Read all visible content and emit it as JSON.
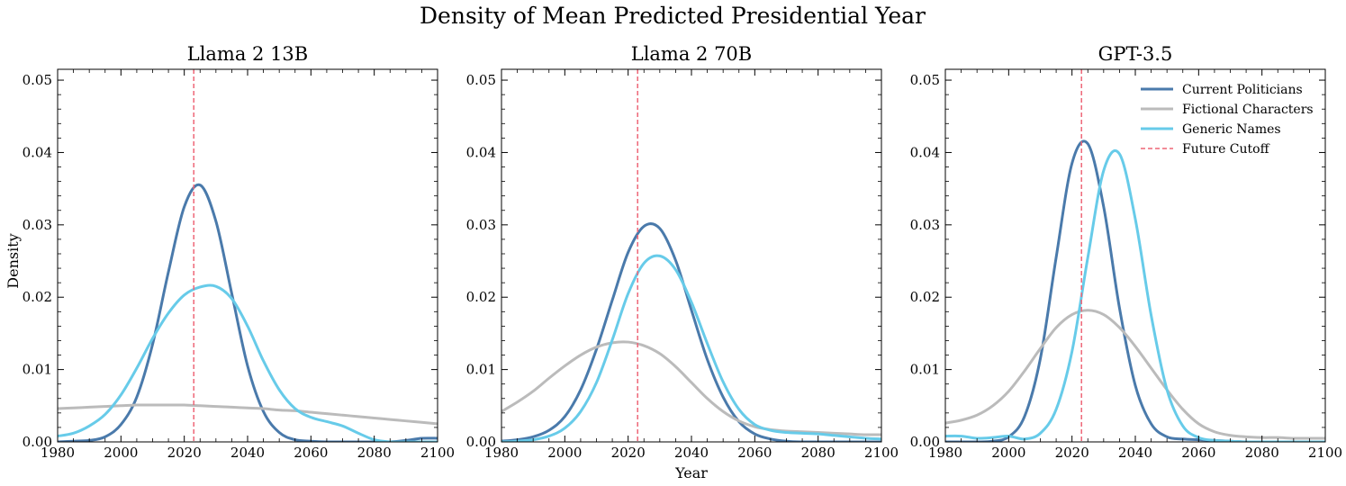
{
  "figure": {
    "suptitle": "Density of Mean Predicted Presidential Year",
    "ylabel": "Density",
    "xlabel": "Year"
  },
  "colors": {
    "current_politicians": "#4a7aab",
    "fictional_characters": "#bbbbbb",
    "generic_names": "#67cbe9",
    "future_cutoff": "#ee6677"
  },
  "legend": {
    "placement": "top-right of GPT-3.5 panel",
    "entries": [
      "Current Politicians",
      "Fictional Characters",
      "Generic Names",
      "Future Cutoff"
    ]
  },
  "chart_data": [
    {
      "type": "line",
      "title": "Llama 2 13B",
      "xlim": [
        1980,
        2100
      ],
      "ylim": [
        0,
        0.0515
      ],
      "xticks": [
        "1980",
        "2000",
        "2020",
        "2040",
        "2060",
        "2080",
        "2100"
      ],
      "yticks": [
        "0.00",
        "0.01",
        "0.02",
        "0.03",
        "0.04",
        "0.05"
      ],
      "cutoff": 2023,
      "x": [
        1980,
        1985,
        1990,
        1995,
        2000,
        2005,
        2010,
        2015,
        2020,
        2025,
        2030,
        2035,
        2040,
        2045,
        2050,
        2055,
        2060,
        2065,
        2070,
        2075,
        2080,
        2085,
        2090,
        2095,
        2100
      ],
      "series": [
        {
          "name": "Current Politicians",
          "values": [
            0.0,
            0.0001,
            0.0002,
            0.0007,
            0.0024,
            0.0062,
            0.0135,
            0.0235,
            0.0325,
            0.0355,
            0.0305,
            0.0205,
            0.0105,
            0.0042,
            0.0013,
            0.0003,
            0.0001,
            0.0,
            0.0,
            0.0,
            0.0,
            0.0,
            0.0002,
            0.0005,
            0.0005
          ]
        },
        {
          "name": "Fictional Characters",
          "values": [
            0.0046,
            0.0047,
            0.0048,
            0.0049,
            0.005,
            0.0051,
            0.0051,
            0.0051,
            0.0051,
            0.005,
            0.0049,
            0.0048,
            0.0047,
            0.0046,
            0.0044,
            0.0043,
            0.0041,
            0.0039,
            0.0037,
            0.0035,
            0.0033,
            0.0031,
            0.0029,
            0.0027,
            0.0025
          ]
        },
        {
          "name": "Generic Names",
          "values": [
            0.0008,
            0.0012,
            0.0022,
            0.0038,
            0.0065,
            0.0102,
            0.0143,
            0.0178,
            0.0203,
            0.0214,
            0.0215,
            0.0198,
            0.016,
            0.0112,
            0.0072,
            0.0046,
            0.0034,
            0.0028,
            0.0022,
            0.0012,
            0.0003,
            0.0,
            0.0,
            0.0,
            0.0
          ]
        }
      ]
    },
    {
      "type": "line",
      "title": "Llama 2 70B",
      "xlim": [
        1980,
        2100
      ],
      "ylim": [
        0,
        0.0515
      ],
      "xticks": [
        "1980",
        "2000",
        "2020",
        "2040",
        "2060",
        "2080",
        "2100"
      ],
      "yticks": [
        "0.00",
        "0.01",
        "0.02",
        "0.03",
        "0.04",
        "0.05"
      ],
      "cutoff": 2023,
      "x": [
        1980,
        1985,
        1990,
        1995,
        2000,
        2005,
        2010,
        2015,
        2020,
        2025,
        2030,
        2035,
        2040,
        2045,
        2050,
        2055,
        2060,
        2065,
        2070,
        2075,
        2080,
        2085,
        2090,
        2095,
        2100
      ],
      "series": [
        {
          "name": "Current Politicians",
          "values": [
            0.0001,
            0.0003,
            0.0007,
            0.0016,
            0.0035,
            0.0072,
            0.0128,
            0.0196,
            0.0262,
            0.0298,
            0.0295,
            0.0251,
            0.0182,
            0.0114,
            0.0062,
            0.0028,
            0.0011,
            0.0004,
            0.0001,
            0.0,
            0.0,
            0.0,
            0.0,
            0.0,
            0.0
          ]
        },
        {
          "name": "Fictional Characters",
          "values": [
            0.0042,
            0.0055,
            0.007,
            0.0088,
            0.0105,
            0.012,
            0.0131,
            0.0137,
            0.0138,
            0.0133,
            0.0122,
            0.0104,
            0.0082,
            0.006,
            0.0042,
            0.0029,
            0.0021,
            0.0017,
            0.0015,
            0.0014,
            0.0013,
            0.0012,
            0.0011,
            0.001,
            0.001
          ]
        },
        {
          "name": "Generic Names",
          "values": [
            0.0,
            0.0001,
            0.0003,
            0.0008,
            0.0019,
            0.0042,
            0.0082,
            0.0141,
            0.0205,
            0.0247,
            0.0257,
            0.0238,
            0.0193,
            0.0136,
            0.0083,
            0.0045,
            0.0024,
            0.0016,
            0.0013,
            0.0012,
            0.0011,
            0.0009,
            0.0007,
            0.0005,
            0.0004
          ]
        }
      ]
    },
    {
      "type": "line",
      "title": "GPT-3.5",
      "xlim": [
        1980,
        2100
      ],
      "ylim": [
        0,
        0.0515
      ],
      "xticks": [
        "1980",
        "2000",
        "2020",
        "2040",
        "2060",
        "2080",
        "2100"
      ],
      "yticks": [
        "0.00",
        "0.01",
        "0.02",
        "0.03",
        "0.04",
        "0.05"
      ],
      "cutoff": 2023,
      "x": [
        1980,
        1985,
        1990,
        1995,
        2000,
        2005,
        2010,
        2015,
        2020,
        2025,
        2030,
        2035,
        2040,
        2045,
        2050,
        2055,
        2060,
        2065,
        2070,
        2075,
        2080,
        2085,
        2090,
        2095,
        2100
      ],
      "series": [
        {
          "name": "Current Politicians",
          "values": [
            0.0,
            0.0,
            0.0,
            0.0001,
            0.0007,
            0.0035,
            0.0115,
            0.0255,
            0.0385,
            0.0412,
            0.0325,
            0.0185,
            0.0078,
            0.0025,
            0.0007,
            0.0004,
            0.0003,
            0.0002,
            0.0001,
            0.0,
            0.0,
            0.0,
            0.0,
            0.0,
            0.0
          ]
        },
        {
          "name": "Fictional Characters",
          "values": [
            0.0026,
            0.003,
            0.0037,
            0.005,
            0.007,
            0.0098,
            0.0129,
            0.0158,
            0.0176,
            0.0182,
            0.0176,
            0.0158,
            0.0132,
            0.0102,
            0.0072,
            0.0045,
            0.0025,
            0.0014,
            0.0009,
            0.0007,
            0.0006,
            0.0006,
            0.0005,
            0.0005,
            0.0005
          ]
        },
        {
          "name": "Generic Names",
          "values": [
            0.0008,
            0.0008,
            0.0005,
            0.0006,
            0.0008,
            0.0004,
            0.0012,
            0.0045,
            0.0125,
            0.0255,
            0.0375,
            0.0398,
            0.0308,
            0.0175,
            0.0072,
            0.0022,
            0.0006,
            0.0002,
            0.0001,
            0.0,
            0.0,
            0.0,
            0.0,
            0.0,
            0.0
          ]
        }
      ]
    }
  ]
}
